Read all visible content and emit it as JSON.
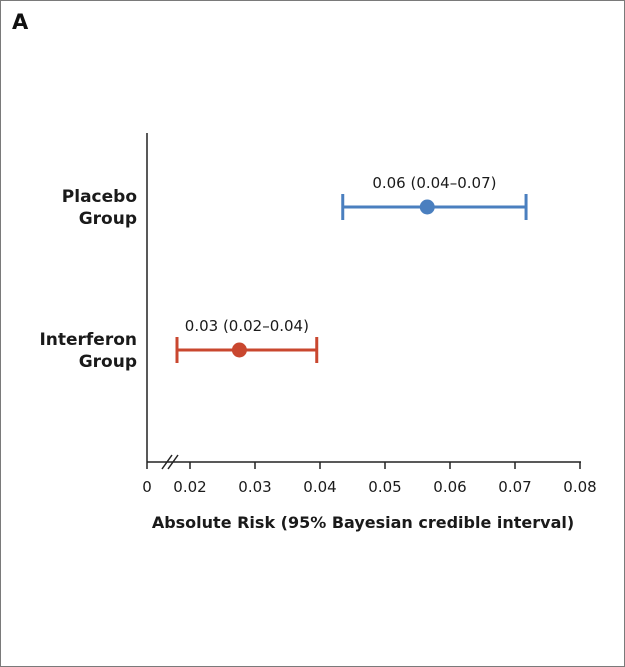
{
  "panel_label": "A",
  "colors": {
    "placebo": "#4a7fbf",
    "interferon": "#c9472f",
    "axis": "#222222"
  },
  "chart_data": {
    "type": "scatter",
    "title": "",
    "xlabel": "Absolute Risk (95% Bayesian credible interval)",
    "ylabel": "",
    "xlim": [
      0,
      0.08
    ],
    "x_ticks": [
      0,
      0.02,
      0.03,
      0.04,
      0.05,
      0.06,
      0.07,
      0.08
    ],
    "x_tick_labels": [
      "0",
      "0.02",
      "0.03",
      "0.04",
      "0.05",
      "0.06",
      "0.07",
      "0.08"
    ],
    "axis_break": "between 0 and 0.02",
    "grid": false,
    "categories": [
      {
        "name": "Placebo Group",
        "lines": [
          "Placebo",
          "Group"
        ]
      },
      {
        "name": "Interferon Group",
        "lines": [
          "Interferon",
          "Group"
        ]
      }
    ],
    "series": [
      {
        "category": "Placebo Group",
        "estimate": 0.0565,
        "lower": 0.0435,
        "upper": 0.0717,
        "label": "0.06 (0.04–0.07)",
        "color": "#4a7fbf"
      },
      {
        "category": "Interferon Group",
        "estimate": 0.0276,
        "lower": 0.018,
        "upper": 0.0395,
        "label": "0.03 (0.02–0.04)",
        "color": "#c9472f"
      }
    ]
  }
}
